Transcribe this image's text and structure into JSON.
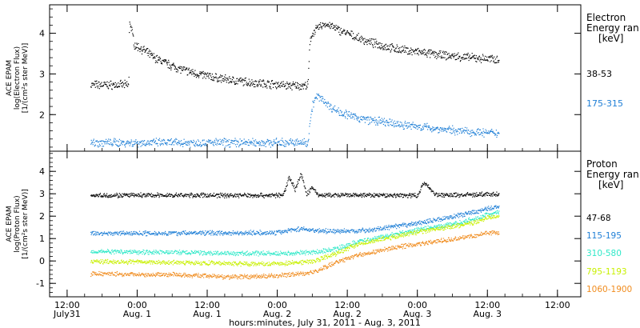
{
  "chart_data": [
    {
      "type": "scatter",
      "ylabel_lines": [
        "ACE EPAM",
        "log(Electron Flux)",
        "[1/(cm²s ster MeV)]"
      ],
      "legend_title": [
        "Electron",
        "Energy ran",
        "[keV]"
      ],
      "yticks": [
        "2",
        "3",
        "4"
      ],
      "ylim": [
        1.1,
        4.7
      ],
      "series": [
        {
          "name": "38-53",
          "color": "#000000",
          "x": [
            -8,
            -1.5,
            -1.4,
            -0.5,
            1,
            3,
            6,
            8,
            10,
            14,
            18,
            22,
            24,
            26,
            28,
            29.2,
            29.4,
            29.6,
            30,
            31,
            32,
            33,
            34,
            36,
            38,
            40,
            44,
            48,
            52,
            56,
            60,
            62
          ],
          "y": [
            2.74,
            2.74,
            4.35,
            3.72,
            3.6,
            3.4,
            3.2,
            3.1,
            3.02,
            2.9,
            2.82,
            2.77,
            2.75,
            2.72,
            2.72,
            2.72,
            3.4,
            3.85,
            4.02,
            4.15,
            4.24,
            4.2,
            4.12,
            4.0,
            3.88,
            3.78,
            3.63,
            3.55,
            3.47,
            3.42,
            3.38,
            3.37
          ]
        },
        {
          "name": "175-315",
          "color": "#1f7fd6",
          "x": [
            -8,
            29.2,
            29.5,
            30,
            30.5,
            31,
            32,
            33,
            34,
            36,
            38,
            40,
            44,
            48,
            52,
            56,
            60,
            62
          ],
          "y": [
            1.32,
            1.32,
            1.8,
            2.25,
            2.42,
            2.45,
            2.35,
            2.2,
            2.12,
            2.0,
            1.92,
            1.87,
            1.78,
            1.72,
            1.65,
            1.6,
            1.56,
            1.55
          ]
        }
      ]
    },
    {
      "type": "scatter",
      "ylabel_lines": [
        "ACE EPAM",
        "log(Proton Flux)",
        "[1/(cm²s ster MeV)]"
      ],
      "legend_title": [
        "Proton",
        "Energy ran",
        "[keV]"
      ],
      "yticks": [
        "-1",
        "0",
        "1",
        "2",
        "3",
        "4"
      ],
      "ylim": [
        -1.6,
        4.9
      ],
      "xticks": [
        {
          "t": [
            "12:00",
            "July31"
          ],
          "x": -12
        },
        {
          "t": [
            "0:00",
            "Aug. 1"
          ],
          "x": 0
        },
        {
          "t": [
            "12:00",
            "Aug. 1"
          ],
          "x": 12
        },
        {
          "t": [
            "0:00",
            "Aug. 2"
          ],
          "x": 24
        },
        {
          "t": [
            "12:00",
            "Aug. 2"
          ],
          "x": 36
        },
        {
          "t": [
            "0:00",
            "Aug. 3"
          ],
          "x": 48
        },
        {
          "t": [
            "12:00",
            "Aug. 3"
          ],
          "x": 60
        },
        {
          "t": [
            "12:00",
            ""
          ],
          "x": 72
        }
      ],
      "xlabel": "hours:minutes, July 31, 2011 - Aug. 3, 2011",
      "xlim": [
        -15,
        76
      ],
      "series": [
        {
          "name": "47-68",
          "color": "#000000",
          "x": [
            -8,
            20,
            25,
            26,
            27,
            28,
            29,
            30,
            31,
            40,
            48,
            49,
            50,
            51,
            52,
            62
          ],
          "y": [
            2.95,
            2.95,
            2.95,
            3.8,
            3.2,
            3.9,
            3.0,
            3.3,
            2.95,
            2.95,
            2.95,
            3.5,
            3.3,
            3.0,
            2.95,
            3.0
          ]
        },
        {
          "name": "115-195",
          "color": "#1f7fd6",
          "x": [
            -8,
            24,
            26,
            28,
            30,
            32,
            36,
            40,
            44,
            48,
            52,
            56,
            60,
            62
          ],
          "y": [
            1.25,
            1.28,
            1.4,
            1.45,
            1.4,
            1.35,
            1.35,
            1.4,
            1.55,
            1.7,
            1.9,
            2.1,
            2.35,
            2.45
          ]
        },
        {
          "name": "310-580",
          "color": "#2fe8c8",
          "x": [
            -8,
            8,
            16,
            24,
            30,
            34,
            38,
            42,
            46,
            50,
            54,
            58,
            60,
            62
          ],
          "y": [
            0.45,
            0.4,
            0.35,
            0.35,
            0.4,
            0.55,
            0.9,
            1.1,
            1.3,
            1.5,
            1.65,
            1.9,
            2.1,
            2.2
          ]
        },
        {
          "name": "795-1193",
          "color": "#c8f000",
          "x": [
            -8,
            8,
            16,
            24,
            30,
            34,
            38,
            42,
            46,
            50,
            54,
            58,
            60,
            62
          ],
          "y": [
            0.0,
            -0.05,
            -0.1,
            -0.1,
            0.0,
            0.35,
            0.8,
            1.0,
            1.2,
            1.4,
            1.55,
            1.75,
            1.95,
            2.0
          ]
        },
        {
          "name": "1060-1900",
          "color": "#f08c1e",
          "x": [
            -8,
            8,
            16,
            24,
            30,
            34,
            38,
            42,
            46,
            50,
            54,
            58,
            60,
            62
          ],
          "y": [
            -0.55,
            -0.6,
            -0.7,
            -0.65,
            -0.5,
            -0.05,
            0.3,
            0.5,
            0.7,
            0.85,
            1.0,
            1.15,
            1.3,
            1.25
          ]
        }
      ]
    }
  ]
}
